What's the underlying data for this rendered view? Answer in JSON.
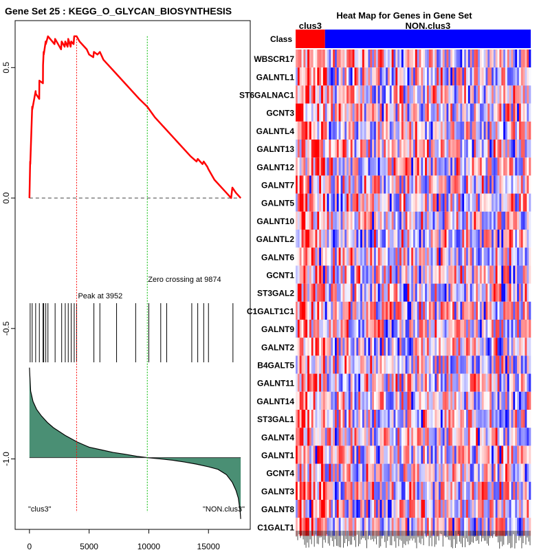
{
  "chart_data": [
    {
      "type": "line",
      "title": "Gene Set  25 : KEGG_O_GLYCAN_BIOSYNTHESIS",
      "xlabel": "",
      "ylabel": "",
      "xlim": [
        -1200,
        18500
      ],
      "ylim": [
        -1.27,
        0.68
      ],
      "xticks": [
        0,
        5000,
        10000,
        15000
      ],
      "xtick_labels": [
        "0",
        "5000",
        "10000",
        "15000"
      ],
      "yticks": [
        0.5,
        0.0,
        -0.5,
        -1.0
      ],
      "ytick_labels": [
        "0.5",
        "0.0",
        "-0.5",
        "-1.0"
      ],
      "running_es": {
        "x": [
          0,
          60,
          70,
          230,
          240,
          520,
          530,
          820,
          830,
          1130,
          1140,
          1190,
          1200,
          1360,
          1370,
          1550,
          2100,
          2150,
          2650,
          2700,
          2950,
          3000,
          3200,
          3250,
          3450,
          3500,
          3700,
          3750,
          3952,
          4200,
          4800,
          5000,
          5350,
          5400,
          5700,
          5900,
          6200,
          7200,
          8200,
          9200,
          9874,
          10500,
          11500,
          12500,
          13500,
          14000,
          14100,
          14500,
          14600,
          14900,
          15000,
          15500,
          16500,
          16900,
          17000,
          17300,
          17700
        ],
        "y": [
          0.0,
          0.14,
          0.13,
          0.35,
          0.34,
          0.41,
          0.4,
          0.38,
          0.45,
          0.44,
          0.51,
          0.56,
          0.55,
          0.6,
          0.59,
          0.62,
          0.59,
          0.61,
          0.57,
          0.6,
          0.58,
          0.6,
          0.58,
          0.61,
          0.58,
          0.6,
          0.59,
          0.62,
          0.62,
          0.6,
          0.57,
          0.55,
          0.54,
          0.56,
          0.55,
          0.56,
          0.53,
          0.48,
          0.43,
          0.38,
          0.35,
          0.31,
          0.26,
          0.21,
          0.16,
          0.14,
          0.15,
          0.13,
          0.14,
          0.12,
          0.11,
          0.07,
          0.02,
          0.0,
          0.04,
          0.02,
          0.0
        ]
      },
      "baseline": 0.0,
      "peak_label": "Peak at 3952",
      "peak_x": 3952,
      "zero_crossing_label": "Zero crossing at 9874",
      "zero_crossing_x": 9874,
      "hit_positions": [
        60,
        230,
        520,
        830,
        1140,
        1200,
        1370,
        1550,
        2150,
        2700,
        3000,
        3250,
        3500,
        3750,
        3952,
        5400,
        5900,
        7300,
        8900,
        10000,
        11000,
        11500,
        13600,
        14100,
        14600,
        15000,
        17050
      ],
      "metric_area": {
        "x": [
          0,
          100,
          300,
          600,
          1000,
          1500,
          2000,
          3000,
          4000,
          5000,
          6000,
          7000,
          8000,
          9000,
          9874,
          11000,
          12000,
          13000,
          14000,
          15000,
          15800,
          16500,
          17000,
          17300,
          17500,
          17650,
          17700
        ],
        "y": [
          -0.65,
          -0.74,
          -0.78,
          -0.81,
          -0.835,
          -0.86,
          -0.88,
          -0.91,
          -0.935,
          -0.955,
          -0.965,
          -0.975,
          -0.982,
          -0.99,
          -0.995,
          -1.0,
          -1.005,
          -1.012,
          -1.02,
          -1.03,
          -1.04,
          -1.06,
          -1.09,
          -1.12,
          -1.15,
          -1.2,
          -1.23
        ]
      },
      "metric_baseline": -0.995,
      "left_class_label": "\"clus3\"",
      "right_class_label": "\"NON.clus3\""
    },
    {
      "type": "heatmap",
      "title": "Heat Map for Genes in Gene Set",
      "class_row_label": "Class",
      "class_groups": [
        {
          "name": "clus3",
          "color": "#ff0000",
          "fraction": 0.125
        },
        {
          "name": "NON.clus3",
          "color": "#0000ff",
          "fraction": 0.875
        }
      ],
      "genes": [
        "WBSCR17",
        "GALNTL1",
        "ST6GALNAC1",
        "GCNT3",
        "GALNTL4",
        "GALNT13",
        "GALNT12",
        "GALNT7",
        "GALNT5",
        "GALNT10",
        "GALNTL2",
        "GALNT6",
        "GCNT1",
        "ST3GAL2",
        "C1GALT1C1",
        "GALNT9",
        "GALNT2",
        "B4GALT5",
        "GALNT11",
        "GALNT14",
        "ST3GAL1",
        "GALNT4",
        "GALNT1",
        "GCNT4",
        "GALNT3",
        "GALNT8",
        "C1GALT1"
      ],
      "color_scale": {
        "low": "#0000ff",
        "mid": "#ffffff",
        "high": "#ff0000"
      }
    }
  ],
  "colors": {
    "es_line": "#ff0000",
    "peak_line": "#ff0000",
    "zero_line": "#00bb00",
    "area_fill": "#4a8f74",
    "hits": "#000000"
  }
}
